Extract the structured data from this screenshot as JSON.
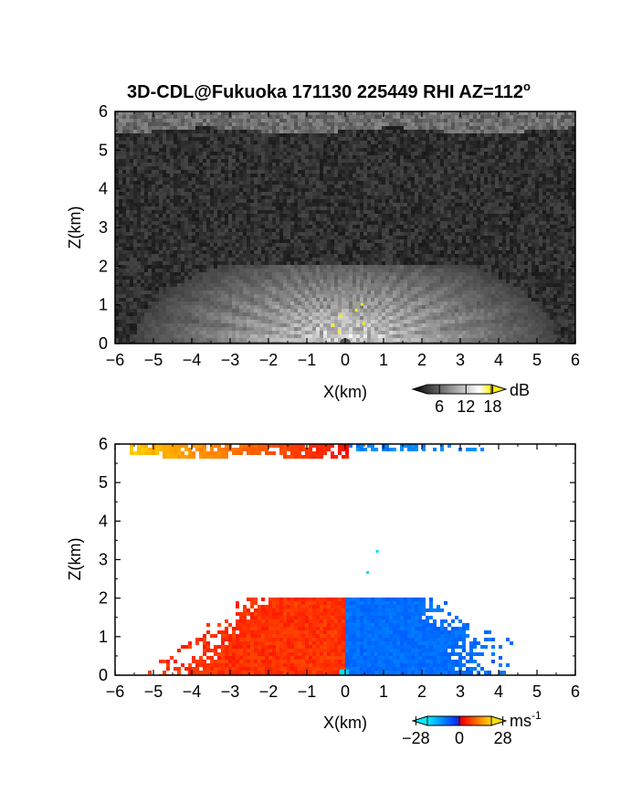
{
  "figure": {
    "title": "3D-CDL@Fukuoka 171130 225449 RHI AZ=112",
    "title_suffix": "o"
  },
  "chart_data": [
    {
      "type": "heatmap",
      "name": "reflectivity-panel",
      "xlabel": "X(km)",
      "ylabel": "Z(km)",
      "xlim": [
        -6,
        6
      ],
      "ylim": [
        0,
        6
      ],
      "xticks": [
        "-6",
        "-5",
        "-4",
        "-3",
        "-2",
        "-1",
        "0",
        "1",
        "2",
        "3",
        "4",
        "5",
        "6"
      ],
      "yticks": [
        "0",
        "1",
        "2",
        "3",
        "4",
        "5",
        "6"
      ],
      "grid": false,
      "colorbar": {
        "unit": "dB",
        "ticks": [
          "6",
          "12",
          "18"
        ],
        "tick_values": [
          6,
          12,
          18
        ],
        "range": [
          0,
          21
        ],
        "colormap": "grayscale",
        "colors": [
          "#000000",
          "#ffffff",
          "#ffee00"
        ]
      },
      "features": {
        "background_noise_db": 4,
        "upper_layer": {
          "z_range_km": [
            5.5,
            6.0
          ],
          "x_range_km": [
            -6,
            6
          ],
          "db": 10
        },
        "near_field": {
          "center_x_km": 0,
          "radial_extent_km": [
            0,
            5.5
          ],
          "max_z_km": 2.0,
          "peak_db": 18
        }
      }
    },
    {
      "type": "heatmap",
      "name": "doppler-velocity-panel",
      "xlabel": "X(km)",
      "ylabel": "Z(km)",
      "xlim": [
        -6,
        6
      ],
      "ylim": [
        0,
        6
      ],
      "xticks": [
        "-6",
        "-5",
        "-4",
        "-3",
        "-2",
        "-1",
        "0",
        "1",
        "2",
        "3",
        "4",
        "5",
        "6"
      ],
      "yticks": [
        "0",
        "1",
        "2",
        "3",
        "4",
        "5",
        "6"
      ],
      "grid": false,
      "colorbar": {
        "unit": "ms",
        "unit_superscript": "-1",
        "ticks": [
          "-28",
          "0",
          "28"
        ],
        "tick_values": [
          -28,
          0,
          28
        ],
        "range": [
          -30,
          30
        ],
        "colormap": "diverging",
        "colors": [
          "#00eeff",
          "#0033ff",
          "#ff0000",
          "#ffdd00"
        ]
      },
      "features": {
        "regions": [
          {
            "x_range_km": [
              -5.5,
              0
            ],
            "z_range_km": [
              5.6,
              6.0
            ],
            "velocity_ms": [
              5,
              20
            ]
          },
          {
            "x_range_km": [
              0,
              4
            ],
            "z_range_km": [
              5.8,
              6.0
            ],
            "velocity_ms": [
              -20,
              -10
            ]
          },
          {
            "x_range_km": [
              -5.5,
              0
            ],
            "z_range_km": [
              0,
              2.0
            ],
            "velocity_ms": [
              5,
              15
            ]
          },
          {
            "x_range_km": [
              0,
              5.3
            ],
            "z_range_km": [
              0,
              2.0
            ],
            "velocity_ms": [
              -15,
              -5
            ]
          }
        ]
      }
    }
  ]
}
